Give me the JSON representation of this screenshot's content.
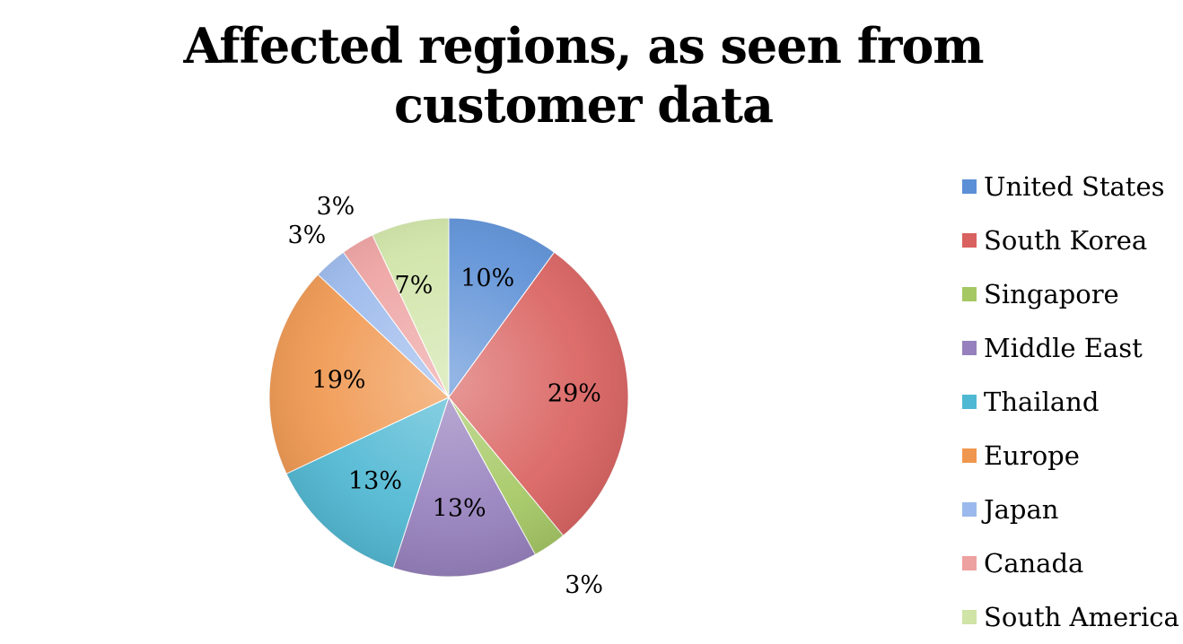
{
  "chart_data": {
    "type": "pie",
    "title_lines": [
      "Affected regions, as seen from",
      "customer data"
    ],
    "slices": [
      {
        "name": "United States",
        "value": 10,
        "label": "10%",
        "color": "#5b8fd6"
      },
      {
        "name": "South Korea",
        "value": 29,
        "label": "29%",
        "color": "#d9615f"
      },
      {
        "name": "Singapore",
        "value": 3,
        "label": "3%",
        "color": "#a5c863"
      },
      {
        "name": "Middle East",
        "value": 13,
        "label": "13%",
        "color": "#9680bd"
      },
      {
        "name": "Thailand",
        "value": 13,
        "label": "13%",
        "color": "#4fb8d3"
      },
      {
        "name": "Europe",
        "value": 19,
        "label": "19%",
        "color": "#f0974f"
      },
      {
        "name": "Japan",
        "value": 3,
        "label": "3%",
        "color": "#9bb9ec"
      },
      {
        "name": "Canada",
        "value": 3,
        "label": "3%",
        "color": "#eda1a0"
      },
      {
        "name": "South America",
        "value": 7,
        "label": "7%",
        "color": "#cfe4a6"
      }
    ],
    "legend_position": "right"
  }
}
